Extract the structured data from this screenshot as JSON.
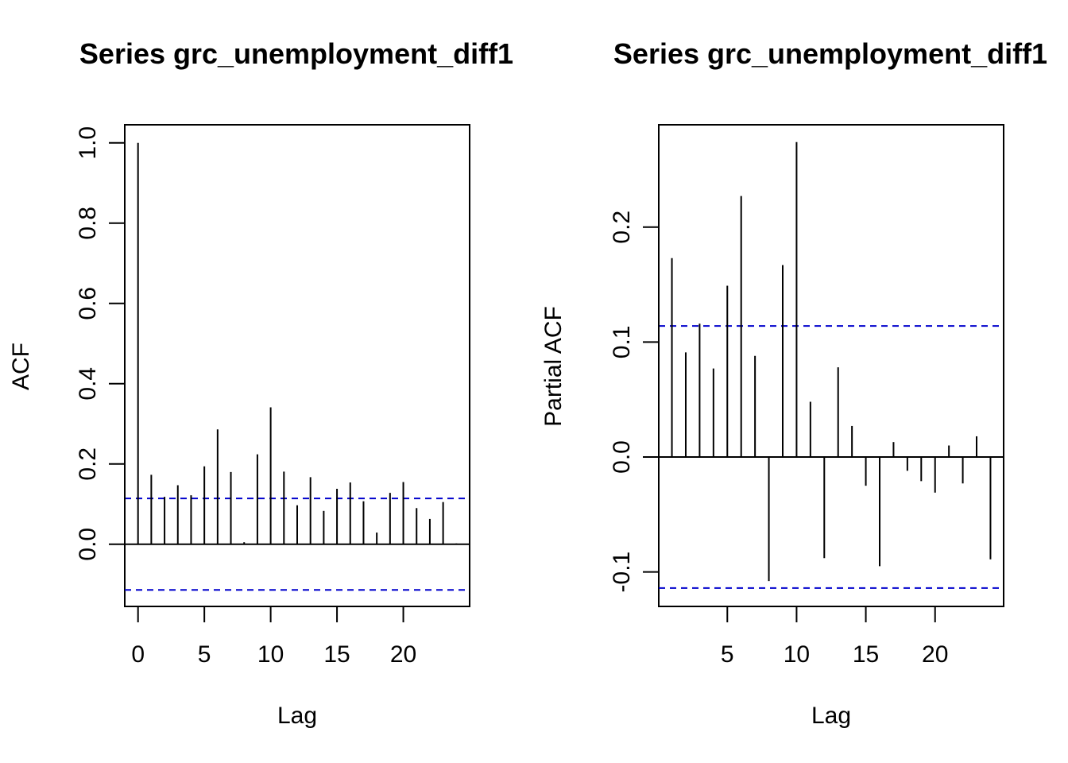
{
  "chart_data": [
    {
      "type": "bar",
      "title": "Series  grc_unemployment_diff1",
      "xlabel": "Lag",
      "ylabel": "ACF",
      "x": [
        0,
        1,
        2,
        3,
        4,
        5,
        6,
        7,
        8,
        9,
        10,
        11,
        12,
        13,
        14,
        15,
        16,
        17,
        18,
        19,
        20,
        21,
        22,
        23,
        24
      ],
      "values": [
        1.0,
        0.173,
        0.118,
        0.147,
        0.122,
        0.194,
        0.286,
        0.18,
        0.005,
        0.224,
        0.341,
        0.181,
        0.097,
        0.167,
        0.083,
        0.138,
        0.154,
        0.107,
        0.029,
        0.128,
        0.155,
        0.09,
        0.063,
        0.105,
        0.002
      ],
      "xticks": [
        0,
        5,
        10,
        15,
        20
      ],
      "xtick_labels": [
        "0",
        "5",
        "10",
        "15",
        "20"
      ],
      "yticks": [
        0.0,
        0.2,
        0.4,
        0.6,
        0.8,
        1.0
      ],
      "ytick_labels": [
        "0.0",
        "0.2",
        "0.4",
        "0.6",
        "0.8",
        "1.0"
      ],
      "xlim": [
        -1,
        25
      ],
      "ylim": [
        -0.155,
        1.045
      ],
      "confidence_band": 0.114,
      "band_color": "#0000cc",
      "zero_line": true,
      "grid": false
    },
    {
      "type": "bar",
      "title": "Series  grc_unemployment_diff1",
      "xlabel": "Lag",
      "ylabel": "Partial ACF",
      "x": [
        1,
        2,
        3,
        4,
        5,
        6,
        7,
        8,
        9,
        10,
        11,
        12,
        13,
        14,
        15,
        16,
        17,
        18,
        19,
        20,
        21,
        22,
        23,
        24
      ],
      "values": [
        0.173,
        0.091,
        0.116,
        0.077,
        0.149,
        0.227,
        0.088,
        -0.108,
        0.167,
        0.274,
        0.048,
        -0.088,
        0.078,
        0.027,
        -0.025,
        -0.095,
        0.013,
        -0.012,
        -0.021,
        -0.031,
        0.01,
        -0.023,
        0.018,
        -0.089
      ],
      "xticks": [
        5,
        10,
        15,
        20
      ],
      "xtick_labels": [
        "5",
        "10",
        "15",
        "20"
      ],
      "yticks": [
        -0.1,
        0.0,
        0.1,
        0.2
      ],
      "ytick_labels": [
        "-0.1",
        "0.0",
        "0.1",
        "0.2"
      ],
      "xlim": [
        0.05,
        24.95
      ],
      "ylim": [
        -0.13,
        0.289
      ],
      "confidence_band": 0.114,
      "band_color": "#0000cc",
      "zero_line": true,
      "grid": false
    }
  ]
}
